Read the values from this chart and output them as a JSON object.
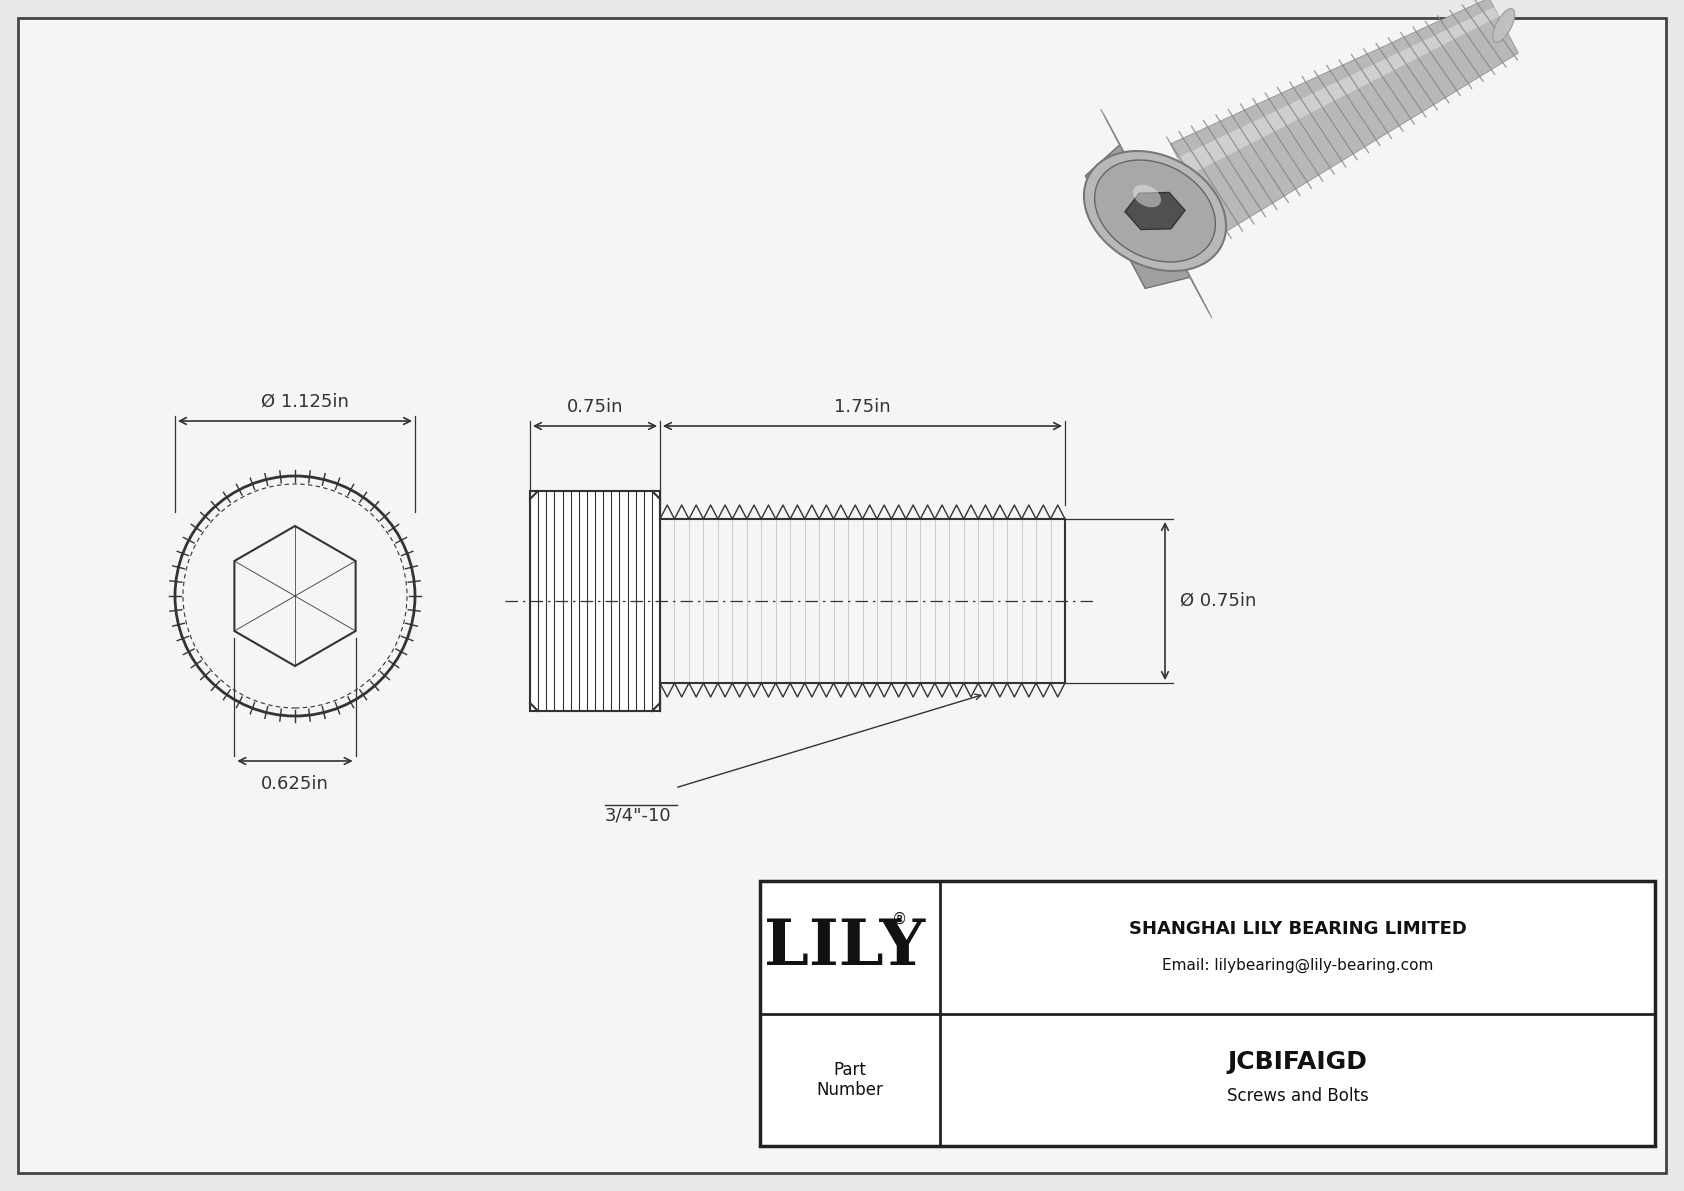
{
  "bg_color": "#e8e8e8",
  "inner_bg_color": "#f5f5f5",
  "border_color": "#444444",
  "line_color": "#333333",
  "title": "JCBIFAIGD",
  "subtitle": "Screws and Bolts",
  "company": "SHANGHAI LILY BEARING LIMITED",
  "email": "Email: lilybearing@lily-bearing.com",
  "part_label": "Part\nNumber",
  "dim_head_diameter": "Ø 1.125in",
  "dim_hex_width": "0.625in",
  "dim_head_length": "0.75in",
  "dim_shaft_length": "1.75in",
  "dim_shaft_diameter": "Ø 0.75in",
  "thread_label": "3/4\"-10",
  "logo_text": "LILY",
  "logo_reg": "®",
  "fig_width": 16.84,
  "fig_height": 11.91,
  "dpi": 100
}
